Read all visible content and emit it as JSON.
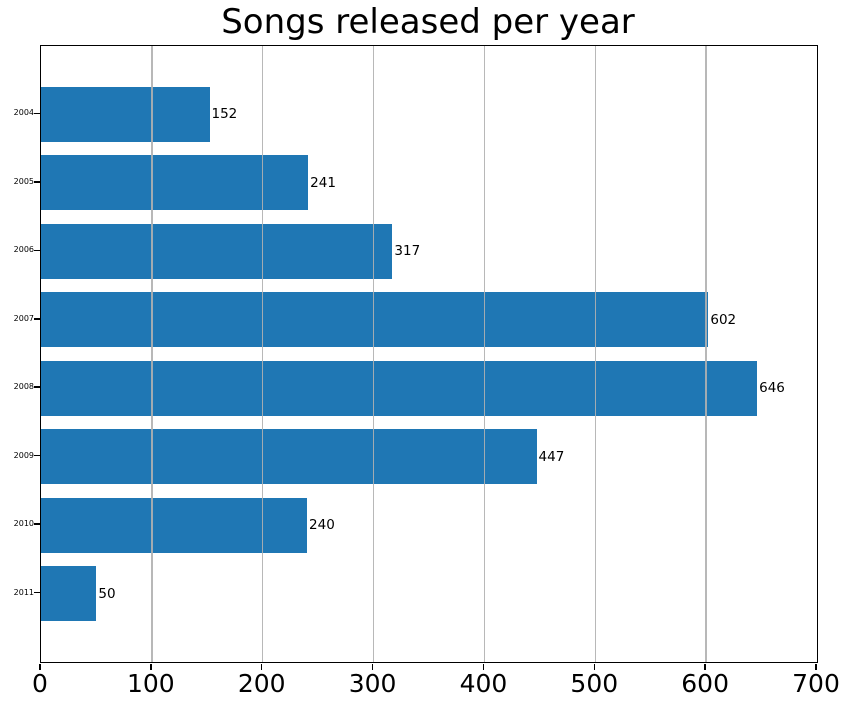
{
  "chart_data": {
    "type": "bar",
    "orientation": "horizontal",
    "title": "Songs released per year",
    "categories": [
      "2004",
      "2005",
      "2006",
      "2007",
      "2008",
      "2009",
      "2010",
      "2011"
    ],
    "values": [
      152,
      241,
      317,
      602,
      646,
      447,
      240,
      50
    ],
    "value_labels": [
      "152",
      "241",
      "317",
      "602",
      "646",
      "447",
      "240",
      "50"
    ],
    "xlabel": "",
    "ylabel": "",
    "xlim": [
      0,
      700
    ],
    "x_ticks": [
      0,
      100,
      200,
      300,
      400,
      500,
      600,
      700
    ],
    "x_tick_labels": [
      "0",
      "100",
      "200",
      "300",
      "400",
      "500",
      "600",
      "700"
    ],
    "grid": "vertical",
    "grid_over_bars": true,
    "legend": "none",
    "bar_color": "#1f77b4",
    "grid_color": "#b0b0b0",
    "axis_color": "#000000",
    "text_color": "#000000",
    "background_color": "#ffffff"
  }
}
